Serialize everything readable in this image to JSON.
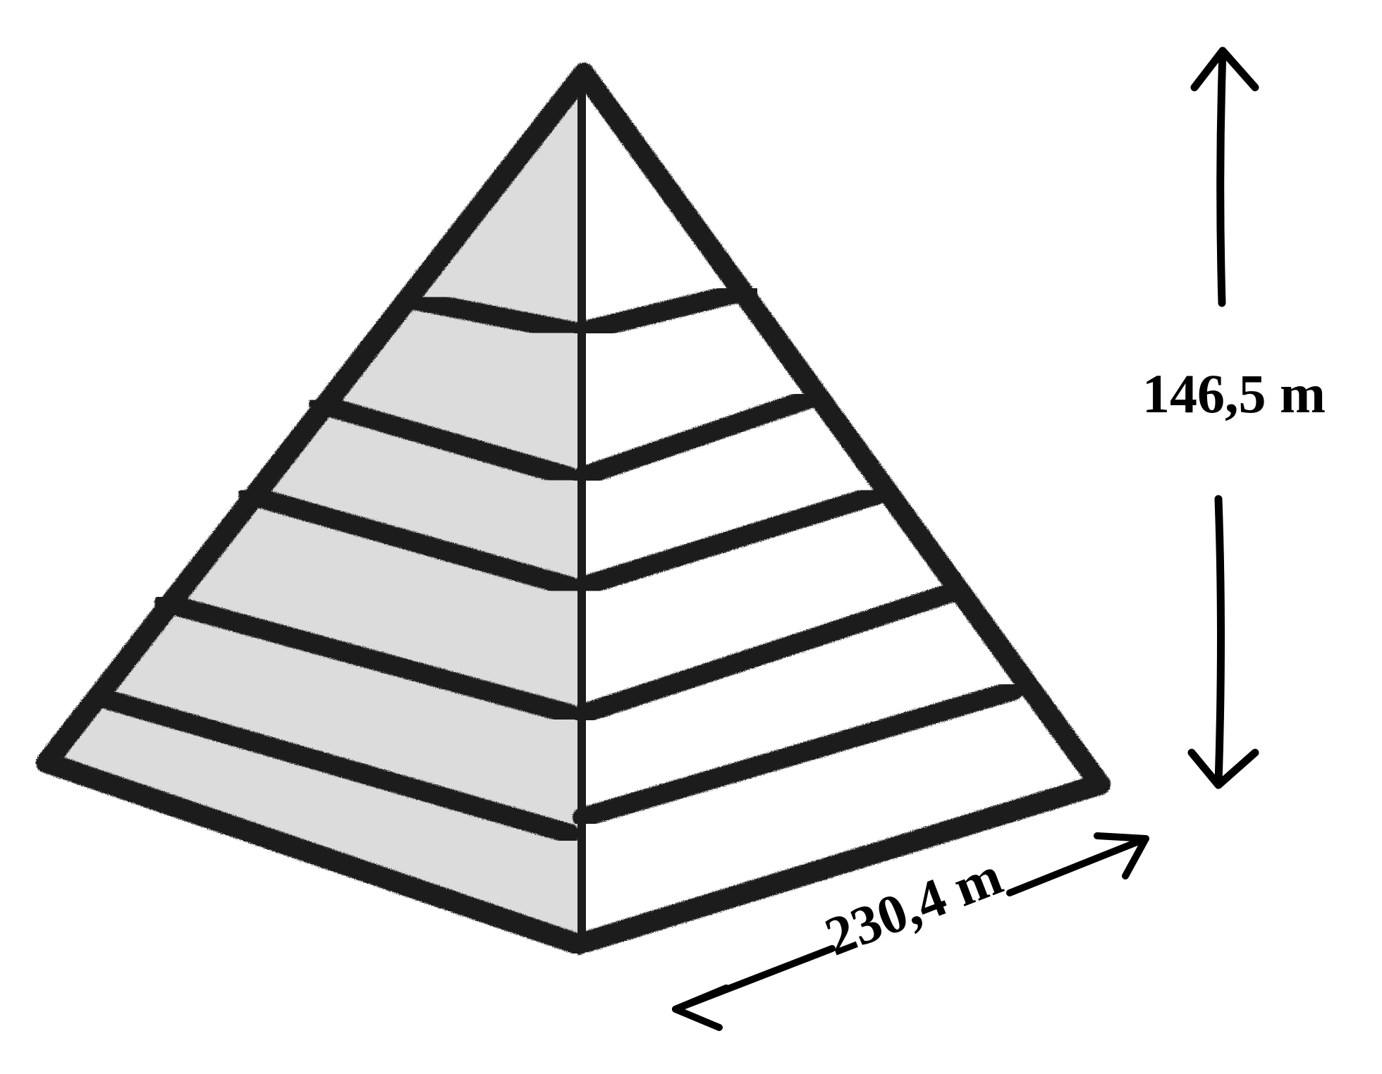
{
  "diagram": {
    "subject": "pyramid",
    "height_label": "146,5 m",
    "base_label": "230,4 m"
  },
  "colors": {
    "background": "#ffffff",
    "shaded_face": "#dcdcdc",
    "light_face": "#ffffff",
    "ink": "#1a1a1a"
  }
}
